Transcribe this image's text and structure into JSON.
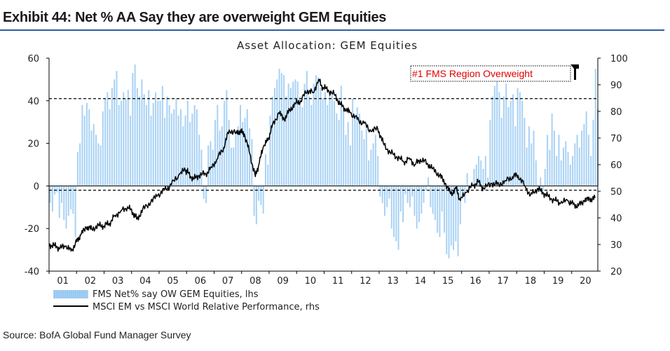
{
  "exhibit_title": "Exhibit 44: Net % AA Say they are overweight GEM Equities",
  "source": "Source: BofA Global Fund Manager Survey",
  "colors": {
    "bars": "#a9d2f5",
    "line": "#000000",
    "rule": "#2e5d9f",
    "annotation": "#e00000"
  },
  "chart_data": {
    "type": "bar",
    "title": "Asset Allocation: GEM Equities",
    "x_tick_labels": [
      "01",
      "02",
      "03",
      "04",
      "05",
      "06",
      "07",
      "08",
      "09",
      "10",
      "11",
      "12",
      "13",
      "14",
      "15",
      "16",
      "17",
      "18",
      "19",
      "20"
    ],
    "x_range": [
      2001.0,
      2020.95
    ],
    "y_left": {
      "ticks": [
        60,
        40,
        20,
        0,
        -20,
        -40
      ],
      "ylim": [
        -40,
        60
      ]
    },
    "y_right": {
      "ticks": [
        100,
        90,
        80,
        70,
        60,
        50,
        40,
        30,
        20
      ],
      "ylim": [
        20,
        100
      ]
    },
    "reference_lines": [
      {
        "axis": "left",
        "value": 41
      },
      {
        "axis": "left",
        "value": -2
      }
    ],
    "annotation": "#1 FMS Region Overweight",
    "bar_series": {
      "name": "FMS Net% say OW GEM Equities, lhs",
      "x_step": 0.0833,
      "x_start": 2001.0,
      "values": [
        -8,
        -12,
        -4,
        -3,
        -15,
        -8,
        -16,
        -20,
        -14,
        -11,
        -13,
        -24,
        16,
        20,
        38,
        33,
        39,
        36,
        26,
        29,
        24,
        20,
        19,
        35,
        41,
        44,
        36,
        46,
        50,
        54,
        38,
        40,
        44,
        41,
        45,
        33,
        53,
        57,
        46,
        42,
        50,
        43,
        38,
        45,
        33,
        39,
        44,
        40,
        40,
        47,
        32,
        42,
        38,
        34,
        36,
        41,
        33,
        36,
        28,
        33,
        40,
        30,
        34,
        38,
        36,
        24,
        17,
        -6,
        -8,
        19,
        21,
        17,
        31,
        38,
        26,
        28,
        40,
        45,
        31,
        18,
        18,
        25,
        28,
        38,
        30,
        32,
        36,
        27,
        22,
        -14,
        -18,
        -7,
        -9,
        -13,
        15,
        10,
        33,
        42,
        46,
        50,
        55,
        53,
        52,
        42,
        48,
        46,
        49,
        50,
        49,
        42,
        37,
        48,
        54,
        42,
        38,
        48,
        52,
        51,
        46,
        41,
        44,
        38,
        43,
        44,
        40,
        34,
        31,
        47,
        36,
        24,
        30,
        19,
        41,
        33,
        37,
        34,
        26,
        22,
        27,
        12,
        17,
        20,
        24,
        14,
        -5,
        -8,
        -14,
        -10,
        -6,
        -20,
        -24,
        -26,
        -30,
        -12,
        -17,
        -4,
        -8,
        -10,
        -5,
        -14,
        -20,
        -17,
        -13,
        -8,
        -2,
        4,
        -10,
        -13,
        -16,
        -22,
        -24,
        -12,
        -22,
        -32,
        -34,
        -28,
        -30,
        -26,
        -33,
        -18,
        -4,
        -8,
        6,
        -2,
        2,
        8,
        10,
        14,
        12,
        8,
        14,
        4,
        31,
        42,
        47,
        50,
        44,
        32,
        42,
        48,
        37,
        40,
        43,
        28,
        46,
        44,
        40,
        32,
        18,
        28,
        20,
        26,
        12,
        -2,
        4,
        -3,
        8,
        24,
        17,
        34,
        26,
        14,
        24,
        12,
        18,
        21,
        16,
        10,
        14,
        20,
        24,
        18,
        26,
        29,
        35,
        24,
        14,
        31,
        55,
        36
      ]
    },
    "line_series": {
      "name": "MSCI EM vs MSCI World Relative Performance, rhs",
      "points": [
        [
          2001.0,
          30.0
        ],
        [
          2001.2,
          29.5
        ],
        [
          2001.4,
          28.6
        ],
        [
          2001.6,
          29.4
        ],
        [
          2001.8,
          27.5
        ],
        [
          2002.0,
          31.0
        ],
        [
          2002.15,
          33.5
        ],
        [
          2002.35,
          36.5
        ],
        [
          2002.55,
          35.8
        ],
        [
          2002.8,
          37.2
        ],
        [
          2003.0,
          37.0
        ],
        [
          2003.2,
          38.0
        ],
        [
          2003.4,
          41.0
        ],
        [
          2003.6,
          42.5
        ],
        [
          2003.85,
          44.2
        ],
        [
          2004.05,
          42.0
        ],
        [
          2004.2,
          39.5
        ],
        [
          2004.4,
          43.0
        ],
        [
          2004.7,
          46.0
        ],
        [
          2004.95,
          48.5
        ],
        [
          2005.2,
          50.5
        ],
        [
          2005.45,
          52.5
        ],
        [
          2005.75,
          56.5
        ],
        [
          2005.95,
          58.0
        ],
        [
          2006.05,
          57.0
        ],
        [
          2006.25,
          54.5
        ],
        [
          2006.45,
          56.0
        ],
        [
          2006.7,
          56.5
        ],
        [
          2006.9,
          59.0
        ],
        [
          2007.1,
          62.0
        ],
        [
          2007.35,
          66.5
        ],
        [
          2007.55,
          73.0
        ],
        [
          2007.8,
          72.0
        ],
        [
          2007.95,
          72.5
        ],
        [
          2008.1,
          71.5
        ],
        [
          2008.3,
          64.0
        ],
        [
          2008.5,
          55.5
        ],
        [
          2008.65,
          61.0
        ],
        [
          2008.8,
          67.0
        ],
        [
          2008.95,
          69.0
        ],
        [
          2009.1,
          74.0
        ],
        [
          2009.35,
          79.5
        ],
        [
          2009.55,
          77.0
        ],
        [
          2009.75,
          80.5
        ],
        [
          2009.95,
          83.0
        ],
        [
          2010.15,
          84.0
        ],
        [
          2010.4,
          88.0
        ],
        [
          2010.6,
          87.0
        ],
        [
          2010.8,
          92.0
        ],
        [
          2010.95,
          89.0
        ],
        [
          2011.15,
          88.0
        ],
        [
          2011.4,
          86.0
        ],
        [
          2011.6,
          82.5
        ],
        [
          2011.8,
          80.5
        ],
        [
          2011.95,
          79.5
        ],
        [
          2012.2,
          77.0
        ],
        [
          2012.45,
          75.5
        ],
        [
          2012.7,
          72.5
        ],
        [
          2012.95,
          73.5
        ],
        [
          2013.15,
          68.0
        ],
        [
          2013.4,
          64.5
        ],
        [
          2013.65,
          63.0
        ],
        [
          2013.9,
          61.0
        ],
        [
          2014.1,
          62.5
        ],
        [
          2014.3,
          60.0
        ],
        [
          2014.5,
          62.0
        ],
        [
          2014.75,
          60.5
        ],
        [
          2014.95,
          58.5
        ],
        [
          2015.2,
          56.0
        ],
        [
          2015.4,
          53.0
        ],
        [
          2015.6,
          49.0
        ],
        [
          2015.8,
          51.0
        ],
        [
          2015.95,
          46.5
        ],
        [
          2016.15,
          49.5
        ],
        [
          2016.4,
          52.0
        ],
        [
          2016.6,
          53.5
        ],
        [
          2016.8,
          51.0
        ],
        [
          2017.1,
          53.0
        ],
        [
          2017.35,
          52.5
        ],
        [
          2017.6,
          54.0
        ],
        [
          2017.85,
          55.5
        ],
        [
          2018.05,
          56.0
        ],
        [
          2018.3,
          52.0
        ],
        [
          2018.5,
          48.5
        ],
        [
          2018.75,
          51.0
        ],
        [
          2018.95,
          49.5
        ],
        [
          2019.15,
          48.0
        ],
        [
          2019.4,
          46.5
        ],
        [
          2019.6,
          45.5
        ],
        [
          2019.85,
          46.5
        ],
        [
          2020.05,
          45.0
        ],
        [
          2020.25,
          44.5
        ],
        [
          2020.45,
          46.5
        ],
        [
          2020.65,
          47.0
        ],
        [
          2020.85,
          47.5
        ]
      ]
    }
  }
}
